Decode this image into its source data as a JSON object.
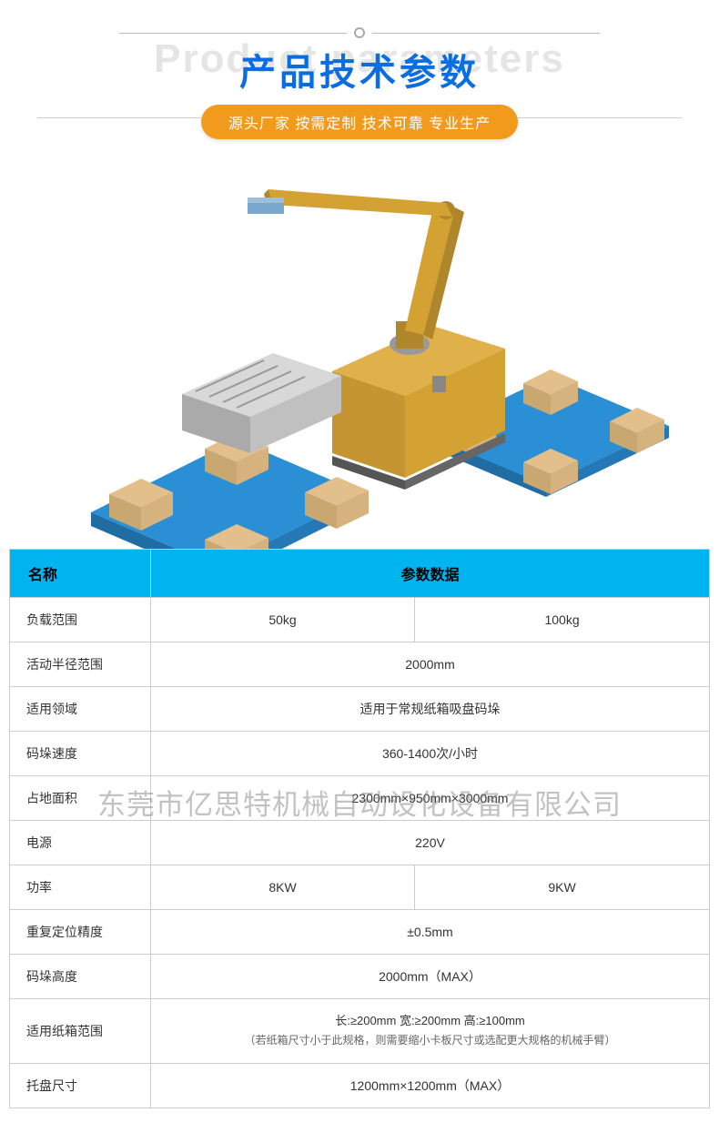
{
  "header": {
    "bg_text": "Product parameters",
    "title": "产品技术参数",
    "subtitle": "源头厂家 按需定制 技术可靠 专业生产",
    "title_color": "#0a6de0",
    "bg_text_color": "#e5e5e5",
    "badge_bg": "#f29a1b",
    "badge_color": "#ffffff"
  },
  "watermark": "东莞市亿思特机械自动设化设备有限公司",
  "table": {
    "header_bg": "#00b4f0",
    "col_name": "名称",
    "col_data": "参数数据",
    "rows": [
      {
        "label": "负载范围",
        "v1": "50kg",
        "v2": "100kg",
        "span": "split"
      },
      {
        "label": "活动半径范围",
        "v": "2000mm",
        "span": "full"
      },
      {
        "label": "适用领域",
        "v": "适用于常规纸箱吸盘码垛",
        "span": "full"
      },
      {
        "label": "码垛速度",
        "v": "360-1400次/小时",
        "span": "full"
      },
      {
        "label": "占地面积",
        "v": "2300mm×950mm×3000mm",
        "span": "full"
      },
      {
        "label": "电源",
        "v": "220V",
        "span": "full"
      },
      {
        "label": "功率",
        "v1": "8KW",
        "v2": "9KW",
        "span": "split"
      },
      {
        "label": "重复定位精度",
        "v": "±0.5mm",
        "span": "full"
      },
      {
        "label": "码垛高度",
        "v": "2000mm（MAX）",
        "span": "full"
      },
      {
        "label": "适用纸箱范围",
        "v": "长:≥200mm  宽:≥200mm  高:≥100mm",
        "note": "（若纸箱尺寸小于此规格，则需要缩小卡板尺寸或选配更大规格的机械手臂）",
        "span": "note"
      },
      {
        "label": "托盘尺寸",
        "v": "1200mm×1200mm（MAX）",
        "span": "full"
      }
    ]
  },
  "image_colors": {
    "arm": "#d4a233",
    "arm_dark": "#b0862a",
    "pallet": "#2a8fd4",
    "pallet_dark": "#1f6da3",
    "box": "#e3c08b",
    "box_dark": "#c9a770",
    "conveyor_frame": "#c0c0c0",
    "conveyor_shadow": "#888888",
    "gripper": "#7aa8cc"
  }
}
